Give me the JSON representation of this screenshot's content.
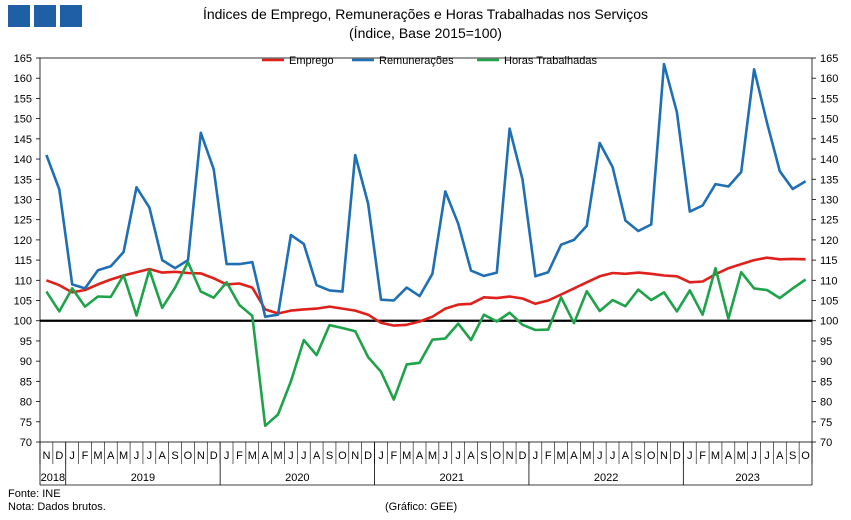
{
  "logo_colors": [
    "#1f5fa6",
    "#1f5fa6",
    "#1f5fa6"
  ],
  "title": "Índices de Emprego, Remunerações e Horas Trabalhadas nos Serviços",
  "subtitle": "(Índice, Base 2015=100)",
  "footer": {
    "source": "Fonte: INE",
    "note": "Nota: Dados brutos.",
    "credit": "(Gráfico: GEE)"
  },
  "chart_data": {
    "type": "line",
    "ylim": [
      70,
      165
    ],
    "yticks": [
      70,
      75,
      80,
      85,
      90,
      95,
      100,
      105,
      110,
      115,
      120,
      125,
      130,
      135,
      140,
      145,
      150,
      155,
      160,
      165
    ],
    "reference_line": 100,
    "legend_position": "top-center",
    "month_labels": [
      "N",
      "D",
      "J",
      "F",
      "M",
      "A",
      "M",
      "J",
      "J",
      "A",
      "S",
      "O",
      "N",
      "D",
      "J",
      "F",
      "M",
      "A",
      "M",
      "J",
      "J",
      "A",
      "S",
      "O",
      "N",
      "D",
      "J",
      "F",
      "M",
      "A",
      "M",
      "J",
      "J",
      "A",
      "S",
      "O",
      "N",
      "D",
      "J",
      "F",
      "M",
      "A",
      "M",
      "J",
      "J",
      "A",
      "S",
      "O",
      "N",
      "D",
      "J",
      "F",
      "M",
      "A",
      "M",
      "J",
      "J",
      "A",
      "S",
      "O"
    ],
    "years": [
      {
        "label": "2018",
        "start": 0,
        "count": 2
      },
      {
        "label": "2019",
        "start": 2,
        "count": 12
      },
      {
        "label": "2020",
        "start": 14,
        "count": 12
      },
      {
        "label": "2021",
        "start": 26,
        "count": 12
      },
      {
        "label": "2022",
        "start": 38,
        "count": 12
      },
      {
        "label": "2023",
        "start": 50,
        "count": 10
      }
    ],
    "series": [
      {
        "name": "Emprego",
        "color": "#e0201b",
        "values": [
          110,
          108.8,
          107,
          107.6,
          109,
          110.2,
          111.2,
          112,
          112.8,
          111.9,
          112.1,
          111.8,
          111.7,
          110.5,
          109,
          109.2,
          108.2,
          102.8,
          101.8,
          102.5,
          102.8,
          103,
          103.5,
          103,
          102.5,
          101.5,
          99.5,
          98.8,
          99,
          99.8,
          101,
          103,
          104,
          104.2,
          105.8,
          105.6,
          106,
          105.5,
          104.2,
          105,
          106.5,
          108,
          109.5,
          111,
          111.8,
          111.6,
          111.9,
          111.6,
          111.2,
          111,
          109.5,
          109.7,
          111.5,
          113,
          114,
          115,
          115.6,
          115.2,
          115.3,
          115.2
        ]
      },
      {
        "name": "Remunerações",
        "color": "#1f6fb5",
        "values": [
          141,
          132.5,
          109,
          108,
          112.5,
          113.5,
          117,
          133,
          128,
          115,
          113,
          115,
          146.5,
          137.5,
          114,
          114,
          114.5,
          101,
          101.5,
          121.2,
          119,
          108.8,
          107.5,
          107.2,
          141,
          129,
          105.2,
          105,
          108.2,
          106.1,
          111.6,
          132,
          124,
          112.4,
          111.1,
          111.9,
          147.5,
          135,
          111,
          112,
          118.8,
          120,
          123.5,
          144,
          138,
          124.8,
          122.2,
          123.8,
          163.5,
          151.6,
          127,
          128.5,
          133.8,
          133.2,
          136.8,
          162.2,
          149,
          137,
          132.6,
          134.5
        ]
      },
      {
        "name": "Horas Trabalhadas",
        "color": "#1fa34a",
        "values": [
          107.2,
          102.3,
          108,
          103.5,
          106,
          105.9,
          111.3,
          101.3,
          112.6,
          103.2,
          108.2,
          114.5,
          107.2,
          105.7,
          109.5,
          103.9,
          101.2,
          74,
          76.8,
          85,
          95.2,
          91.5,
          98.9,
          98.2,
          97.4,
          91,
          87.4,
          80.5,
          89.2,
          89.6,
          95.3,
          95.6,
          99.3,
          95.2,
          101.5,
          99.8,
          102,
          99,
          97.7,
          97.8,
          105.8,
          99.4,
          107.3,
          102.4,
          105.1,
          103.6,
          107.7,
          105.1,
          107,
          102.3,
          107.5,
          101.5,
          113,
          100.5,
          112,
          108,
          107.6,
          105.6,
          108,
          110.2
        ]
      }
    ]
  }
}
